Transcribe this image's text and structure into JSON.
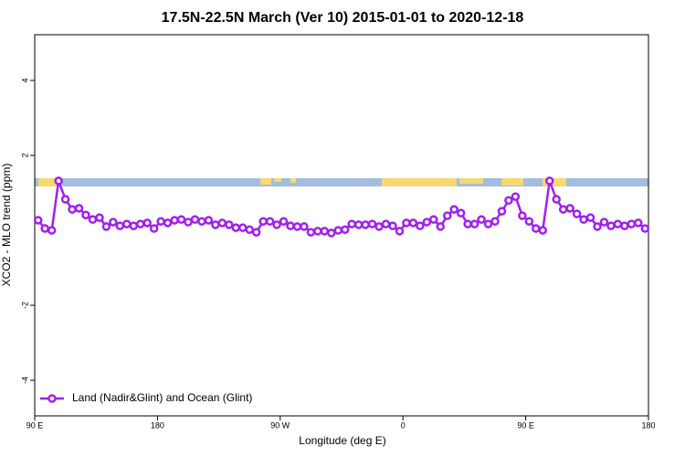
{
  "chart_data": {
    "type": "line",
    "title": "17.5N-22.5N March (Ver 10)   2015-01-01 to 2020-12-18",
    "x_label": "Longitude (deg E)",
    "y_label": "XCO2 - MLO trend (ppm)",
    "x": [
      92.5,
      97.5,
      102.5,
      107.5,
      112.5,
      117.5,
      122.5,
      127.5,
      132.5,
      137.5,
      142.5,
      147.5,
      152.5,
      157.5,
      162.5,
      167.5,
      172.5,
      177.5,
      182.5,
      187.5,
      192.5,
      197.5,
      202.5,
      207.5,
      212.5,
      217.5,
      222.5,
      227.5,
      232.5,
      237.5,
      242.5,
      247.5,
      252.5,
      257.5,
      262.5,
      267.5,
      272.5,
      277.5,
      282.5,
      287.5,
      292.5,
      297.5,
      302.5,
      307.5,
      312.5,
      317.5,
      322.5,
      327.5,
      332.5,
      337.5,
      342.5,
      347.5,
      352.5,
      357.5,
      362.5,
      367.5,
      372.5,
      377.5,
      382.5,
      387.5,
      392.5,
      397.5,
      402.5,
      407.5,
      412.5,
      417.5,
      422.5,
      427.5,
      432.5,
      437.5,
      442.5,
      447.5,
      452.5,
      457.5,
      462.5,
      467.5,
      472.5,
      477.5,
      482.5,
      487.5,
      492.5,
      497.5,
      502.5,
      507.5,
      512.5,
      517.5,
      522.5,
      527.5,
      532.5,
      537.5
    ],
    "series": [
      {
        "name": "Land (Nadir&Glint) and Ocean (Glint)",
        "color": "#a020f0",
        "values": [
          0.27,
          0.05,
          0.0,
          1.32,
          0.83,
          0.56,
          0.59,
          0.41,
          0.29,
          0.34,
          0.1,
          0.22,
          0.12,
          0.17,
          0.12,
          0.17,
          0.2,
          0.05,
          0.24,
          0.2,
          0.27,
          0.29,
          0.22,
          0.29,
          0.24,
          0.27,
          0.15,
          0.2,
          0.15,
          0.07,
          0.07,
          0.02,
          -0.05,
          0.24,
          0.24,
          0.15,
          0.24,
          0.12,
          0.1,
          0.1,
          -0.05,
          -0.02,
          -0.02,
          -0.07,
          0.0,
          0.02,
          0.17,
          0.15,
          0.15,
          0.17,
          0.1,
          0.17,
          0.12,
          -0.02,
          0.2,
          0.2,
          0.12,
          0.22,
          0.29,
          0.1,
          0.39,
          0.56,
          0.46,
          0.17,
          0.17,
          0.29,
          0.17,
          0.24,
          0.51,
          0.8,
          0.9,
          0.39,
          0.24,
          0.05,
          0.0,
          1.32,
          0.83,
          0.56,
          0.59,
          0.44,
          0.29,
          0.34,
          0.1,
          0.22,
          0.12,
          0.17,
          0.12,
          0.17,
          0.2,
          0.05
        ]
      }
    ],
    "xlim": [
      90,
      540
    ],
    "xticks": [
      {
        "value": 90,
        "label": "90 E"
      },
      {
        "value": 180,
        "label": "180"
      },
      {
        "value": 270,
        "label": "90 W"
      },
      {
        "value": 360,
        "label": "0"
      },
      {
        "value": 450,
        "label": "90 E"
      },
      {
        "value": 540,
        "label": "180"
      }
    ],
    "ylim": [
      -4.95,
      5.22
    ],
    "yticks": [
      -4,
      -2,
      2,
      4
    ],
    "legend": "bottom-left"
  }
}
